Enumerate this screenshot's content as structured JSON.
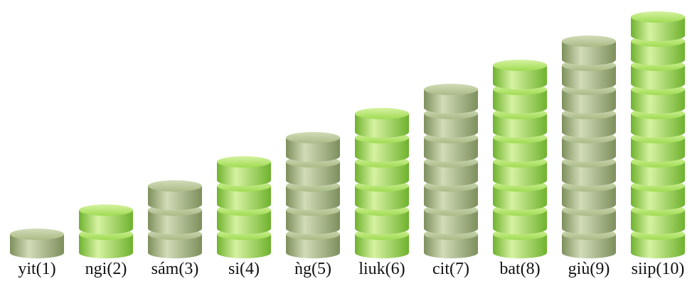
{
  "columns": [
    {
      "label": "yit(1)",
      "count": 1,
      "color": "olive"
    },
    {
      "label": "ngi(2)",
      "count": 2,
      "color": "lime"
    },
    {
      "label": "sám(3)",
      "count": 3,
      "color": "olive"
    },
    {
      "label": "si(4)",
      "count": 4,
      "color": "lime"
    },
    {
      "label": "ǹg(5)",
      "count": 5,
      "color": "olive"
    },
    {
      "label": "liuk(6)",
      "count": 6,
      "color": "lime"
    },
    {
      "label": "cit(7)",
      "count": 7,
      "color": "olive"
    },
    {
      "label": "bat(8)",
      "count": 8,
      "color": "lime"
    },
    {
      "label": "giù(9)",
      "count": 9,
      "color": "olive"
    },
    {
      "label": "siip(10)",
      "count": 10,
      "color": "lime"
    }
  ],
  "colors": {
    "olive_light": "#d2dcb8",
    "olive_mid": "#a9bb86",
    "olive_dark": "#7d8f5c",
    "lime_light": "#d6f2a2",
    "lime_mid": "#9fdc52",
    "lime_dark": "#6fb22e"
  }
}
